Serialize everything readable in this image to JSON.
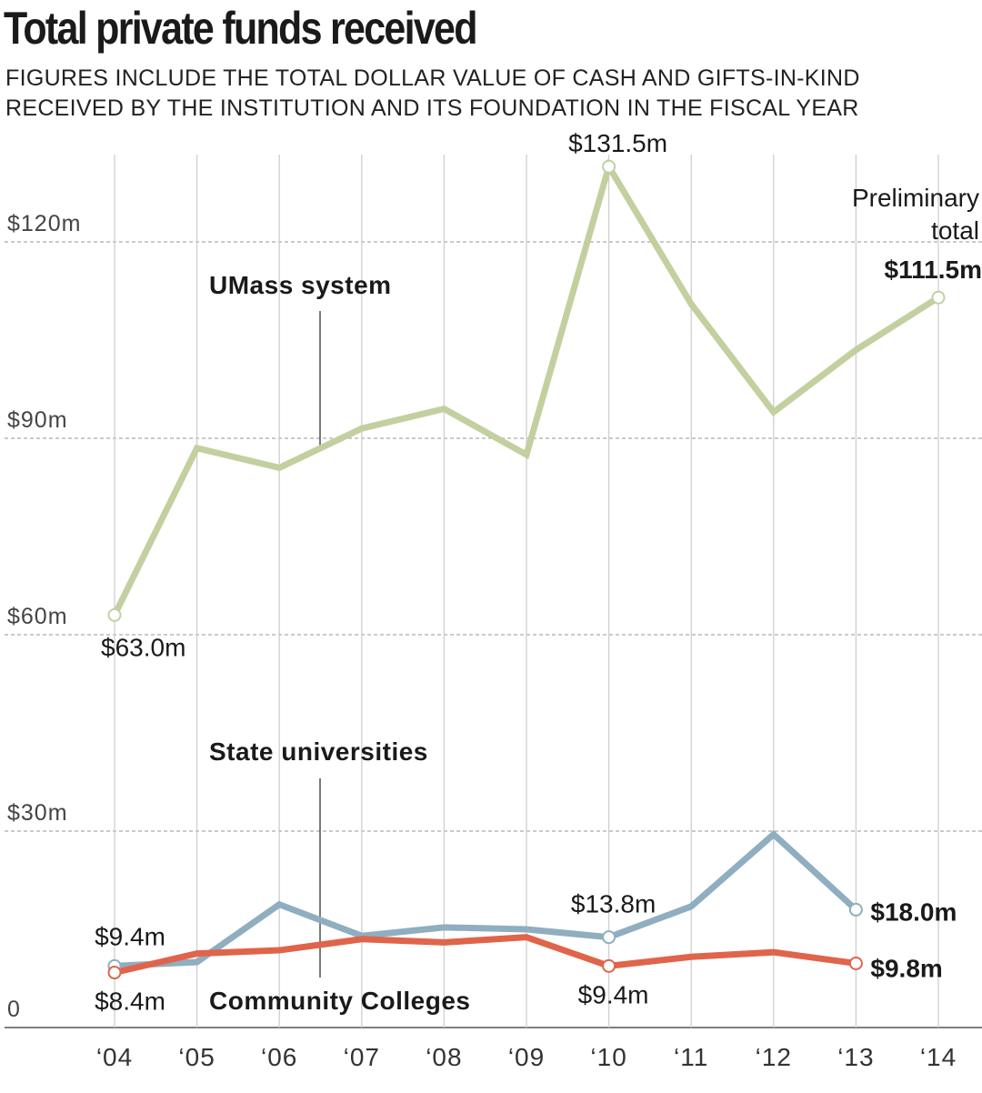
{
  "title": "Total private funds received",
  "subtitle_lines": [
    "FIGURES INCLUDE THE TOTAL DOLLAR VALUE OF CASH AND GIFTS-IN-KIND",
    "RECEIVED BY THE INSTITUTION AND ITS FOUNDATION IN THE FISCAL YEAR"
  ],
  "chart_data": {
    "type": "line",
    "title": "Total private funds received",
    "x": [
      "‘04",
      "‘05",
      "‘06",
      "‘07",
      "‘08",
      "‘09",
      "‘10",
      "‘11",
      "‘12",
      "‘13",
      "‘14"
    ],
    "y_ticks": [
      "0",
      "$30m",
      "$60m",
      "$90m",
      "$120m"
    ],
    "y_tick_values": [
      0,
      30,
      60,
      90,
      120
    ],
    "ylim": [
      0,
      135
    ],
    "grid": "horizontal dashed at y ticks; vertical gray lines at each year",
    "series": [
      {
        "name": "UMass system",
        "color": "#c2d0a0",
        "values": [
          63.0,
          88.5,
          85.5,
          91.5,
          94.5,
          87.5,
          131.5,
          110.5,
          94.0,
          103.5,
          111.5
        ]
      },
      {
        "name": "State universities",
        "color": "#8faec0",
        "values": [
          9.4,
          10.0,
          18.8,
          14.0,
          15.3,
          15.0,
          13.8,
          18.5,
          29.5,
          18.0,
          null
        ]
      },
      {
        "name": "Community Colleges",
        "color": "#e0644a",
        "values": [
          8.4,
          11.3,
          11.8,
          13.5,
          13.0,
          13.8,
          9.4,
          10.8,
          11.5,
          9.8,
          null
        ]
      }
    ],
    "annotations": [
      {
        "text": "$63.0m",
        "series": 0,
        "index": 0,
        "bold": false
      },
      {
        "text": "$131.5m",
        "series": 0,
        "index": 6,
        "bold": false
      },
      {
        "text": "$111.5m",
        "series": 0,
        "index": 10,
        "bold": true
      },
      {
        "text": "$9.4m",
        "series": 1,
        "index": 0,
        "bold": false
      },
      {
        "text": "$13.8m",
        "series": 1,
        "index": 6,
        "bold": false
      },
      {
        "text": "$18.0m",
        "series": 1,
        "index": 9,
        "bold": true
      },
      {
        "text": "$8.4m",
        "series": 2,
        "index": 0,
        "bold": false
      },
      {
        "text": "$9.4m",
        "series": 2,
        "index": 6,
        "bold": false
      },
      {
        "text": "$9.8m",
        "series": 2,
        "index": 9,
        "bold": true
      }
    ],
    "preliminary_note_lines": [
      "Preliminary",
      "total"
    ]
  }
}
